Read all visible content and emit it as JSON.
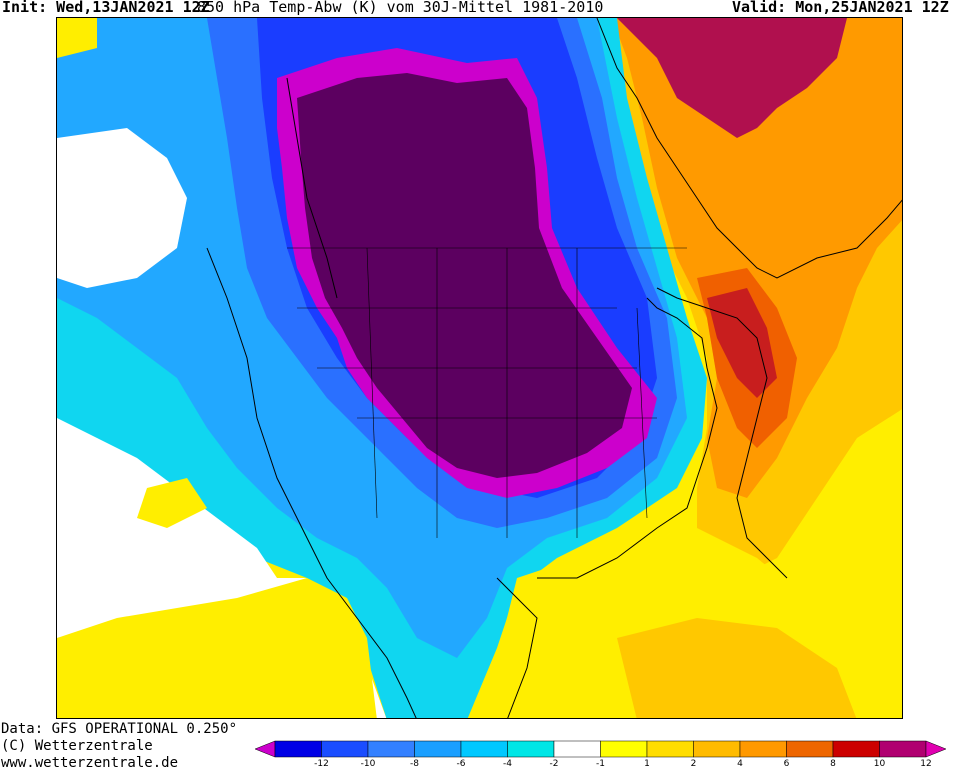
{
  "header": {
    "init": "Init: Wed,13JAN2021 12Z",
    "title": "850 hPa Temp-Abw (K) vom 30J-Mittel 1981-2010",
    "valid": "Valid: Mon,25JAN2021 12Z"
  },
  "footer": {
    "line1": "Data: GFS OPERATIONAL 0.250°",
    "line2": "(C) Wetterzentrale",
    "line3": "www.wetterzentrale.de"
  },
  "legend": {
    "colors": [
      "#cc00cc",
      "#0000e6",
      "#1a4dff",
      "#3380ff",
      "#1a9fff",
      "#00c8ff",
      "#00e6e6",
      "#ffffff",
      "#ffff00",
      "#ffdd00",
      "#ffbb00",
      "#ff9900",
      "#ee6600",
      "#cc0000",
      "#b00070",
      "#e000b0"
    ],
    "ticks": [
      "-12",
      "-10",
      "-8",
      "-6",
      "-4",
      "-2",
      "-1",
      "1",
      "2",
      "4",
      "6",
      "8",
      "10",
      "12"
    ]
  },
  "map": {
    "palette": {
      "deep_cold": "#5c0060",
      "magenta": "#cc00cc",
      "blue": "#1a3dff",
      "mid_blue": "#2a70ff",
      "light_blue": "#22a8ff",
      "cyan": "#10d6f0",
      "white": "#ffffff",
      "yellow": "#ffee00",
      "gold": "#ffc800",
      "orange": "#ff9a00",
      "dark_orange": "#f06000",
      "red": "#c81e1e",
      "crimson": "#b0104e"
    }
  }
}
